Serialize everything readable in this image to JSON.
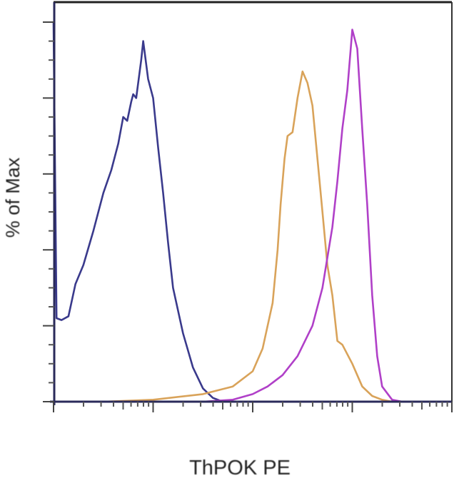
{
  "chart_data": {
    "type": "line",
    "subtype": "flow-cytometry-histogram-overlay",
    "title": "",
    "xlabel": "ThPOK PE",
    "ylabel": "% of Max",
    "x_scale": "log",
    "x_decades": [
      0,
      1,
      2,
      3,
      4
    ],
    "xlim": [
      0,
      4
    ],
    "ylim": [
      0,
      100
    ],
    "y_major_ticks": [
      0,
      20,
      40,
      60,
      80,
      100
    ],
    "tick_labels_shown": false,
    "grid": false,
    "legend": null,
    "series": [
      {
        "name": "blue",
        "color": "#3a3a8c",
        "x": [
          0.0,
          0.03,
          0.08,
          0.15,
          0.22,
          0.3,
          0.4,
          0.5,
          0.58,
          0.65,
          0.7,
          0.74,
          0.78,
          0.8,
          0.83,
          0.86,
          0.88,
          0.9,
          0.95,
          1.0,
          1.05,
          1.1,
          1.15,
          1.2,
          1.3,
          1.4,
          1.5,
          1.6,
          1.7
        ],
        "y": [
          100,
          22,
          21.5,
          22.5,
          31,
          36,
          45,
          55,
          61,
          68,
          75,
          74,
          79,
          81,
          80,
          86,
          90,
          95,
          85,
          80,
          67,
          55,
          42,
          30,
          18,
          9,
          3.5,
          1,
          0
        ]
      },
      {
        "name": "orange",
        "color": "#d9a35a",
        "x": [
          0.0,
          0.5,
          1.0,
          1.5,
          1.8,
          2.0,
          2.1,
          2.2,
          2.25,
          2.28,
          2.32,
          2.35,
          2.4,
          2.45,
          2.5,
          2.55,
          2.6,
          2.65,
          2.7,
          2.75,
          2.8,
          2.85,
          2.9,
          3.0,
          3.1,
          3.2,
          3.3,
          3.4
        ],
        "y": [
          0,
          0,
          0.5,
          2,
          4,
          8,
          14,
          26,
          40,
          52,
          64,
          70,
          71,
          80,
          87,
          84,
          78,
          64,
          50,
          36,
          28,
          16,
          15,
          10,
          4,
          1.5,
          0.5,
          0
        ]
      },
      {
        "name": "magenta",
        "color": "#b040c8",
        "x": [
          0.0,
          1.5,
          1.8,
          2.0,
          2.15,
          2.3,
          2.45,
          2.6,
          2.7,
          2.8,
          2.85,
          2.9,
          2.95,
          3.0,
          3.05,
          3.1,
          3.15,
          3.2,
          3.25,
          3.3,
          3.4,
          3.5,
          3.6
        ],
        "y": [
          0,
          0,
          0.5,
          2,
          4,
          7,
          12,
          20,
          30,
          46,
          58,
          72,
          82,
          98,
          93,
          72,
          52,
          28,
          12,
          4,
          0.5,
          0,
          0
        ]
      }
    ]
  }
}
